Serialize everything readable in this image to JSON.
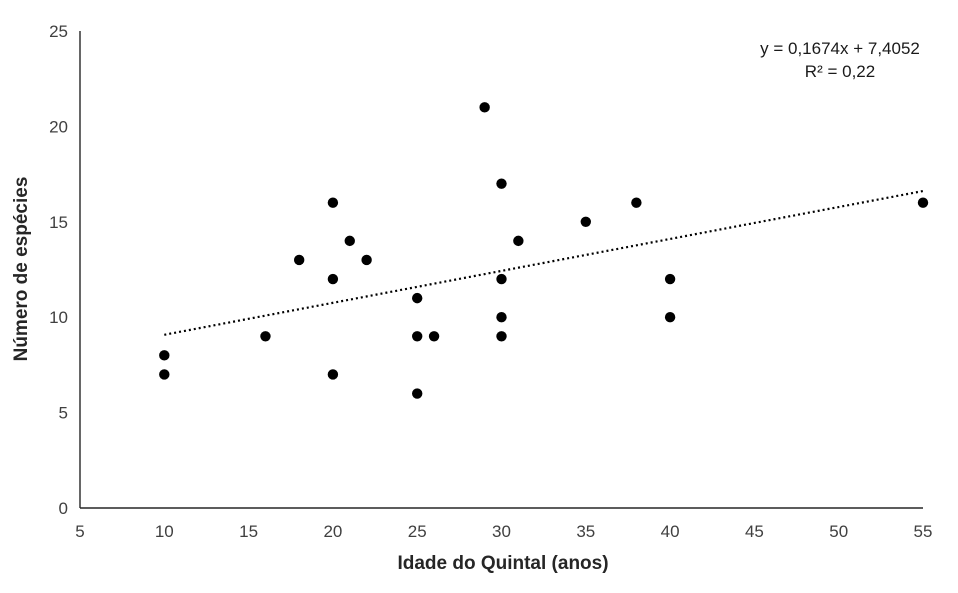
{
  "chart_data": {
    "type": "scatter",
    "xlabel": "Idade do  Quintal (anos)",
    "ylabel": "Número de espécies",
    "xlim": [
      5,
      55
    ],
    "ylim": [
      0,
      25
    ],
    "x_ticks": [
      5,
      10,
      15,
      20,
      25,
      30,
      35,
      40,
      45,
      50,
      55
    ],
    "y_ticks": [
      0,
      5,
      10,
      15,
      20,
      25
    ],
    "grid": false,
    "legend": "none",
    "marker_color": "#000000",
    "points": [
      {
        "x": 10,
        "y": 8
      },
      {
        "x": 10,
        "y": 7
      },
      {
        "x": 16,
        "y": 9
      },
      {
        "x": 18,
        "y": 13
      },
      {
        "x": 20,
        "y": 16
      },
      {
        "x": 20,
        "y": 12
      },
      {
        "x": 20,
        "y": 7
      },
      {
        "x": 21,
        "y": 14
      },
      {
        "x": 22,
        "y": 13
      },
      {
        "x": 25,
        "y": 11
      },
      {
        "x": 25,
        "y": 9
      },
      {
        "x": 25,
        "y": 6
      },
      {
        "x": 26,
        "y": 9
      },
      {
        "x": 29,
        "y": 21
      },
      {
        "x": 30,
        "y": 17
      },
      {
        "x": 30,
        "y": 12
      },
      {
        "x": 30,
        "y": 10
      },
      {
        "x": 30,
        "y": 9
      },
      {
        "x": 31,
        "y": 14
      },
      {
        "x": 35,
        "y": 15
      },
      {
        "x": 38,
        "y": 16
      },
      {
        "x": 40,
        "y": 12
      },
      {
        "x": 40,
        "y": 10
      },
      {
        "x": 55,
        "y": 16
      }
    ],
    "trendline": {
      "slope": 0.1674,
      "intercept": 7.4052,
      "x_range": [
        10,
        55
      ],
      "style": "dotted"
    },
    "annotations": [
      "y = 0,1674x + 7,4052",
      "R² = 0,22"
    ]
  }
}
